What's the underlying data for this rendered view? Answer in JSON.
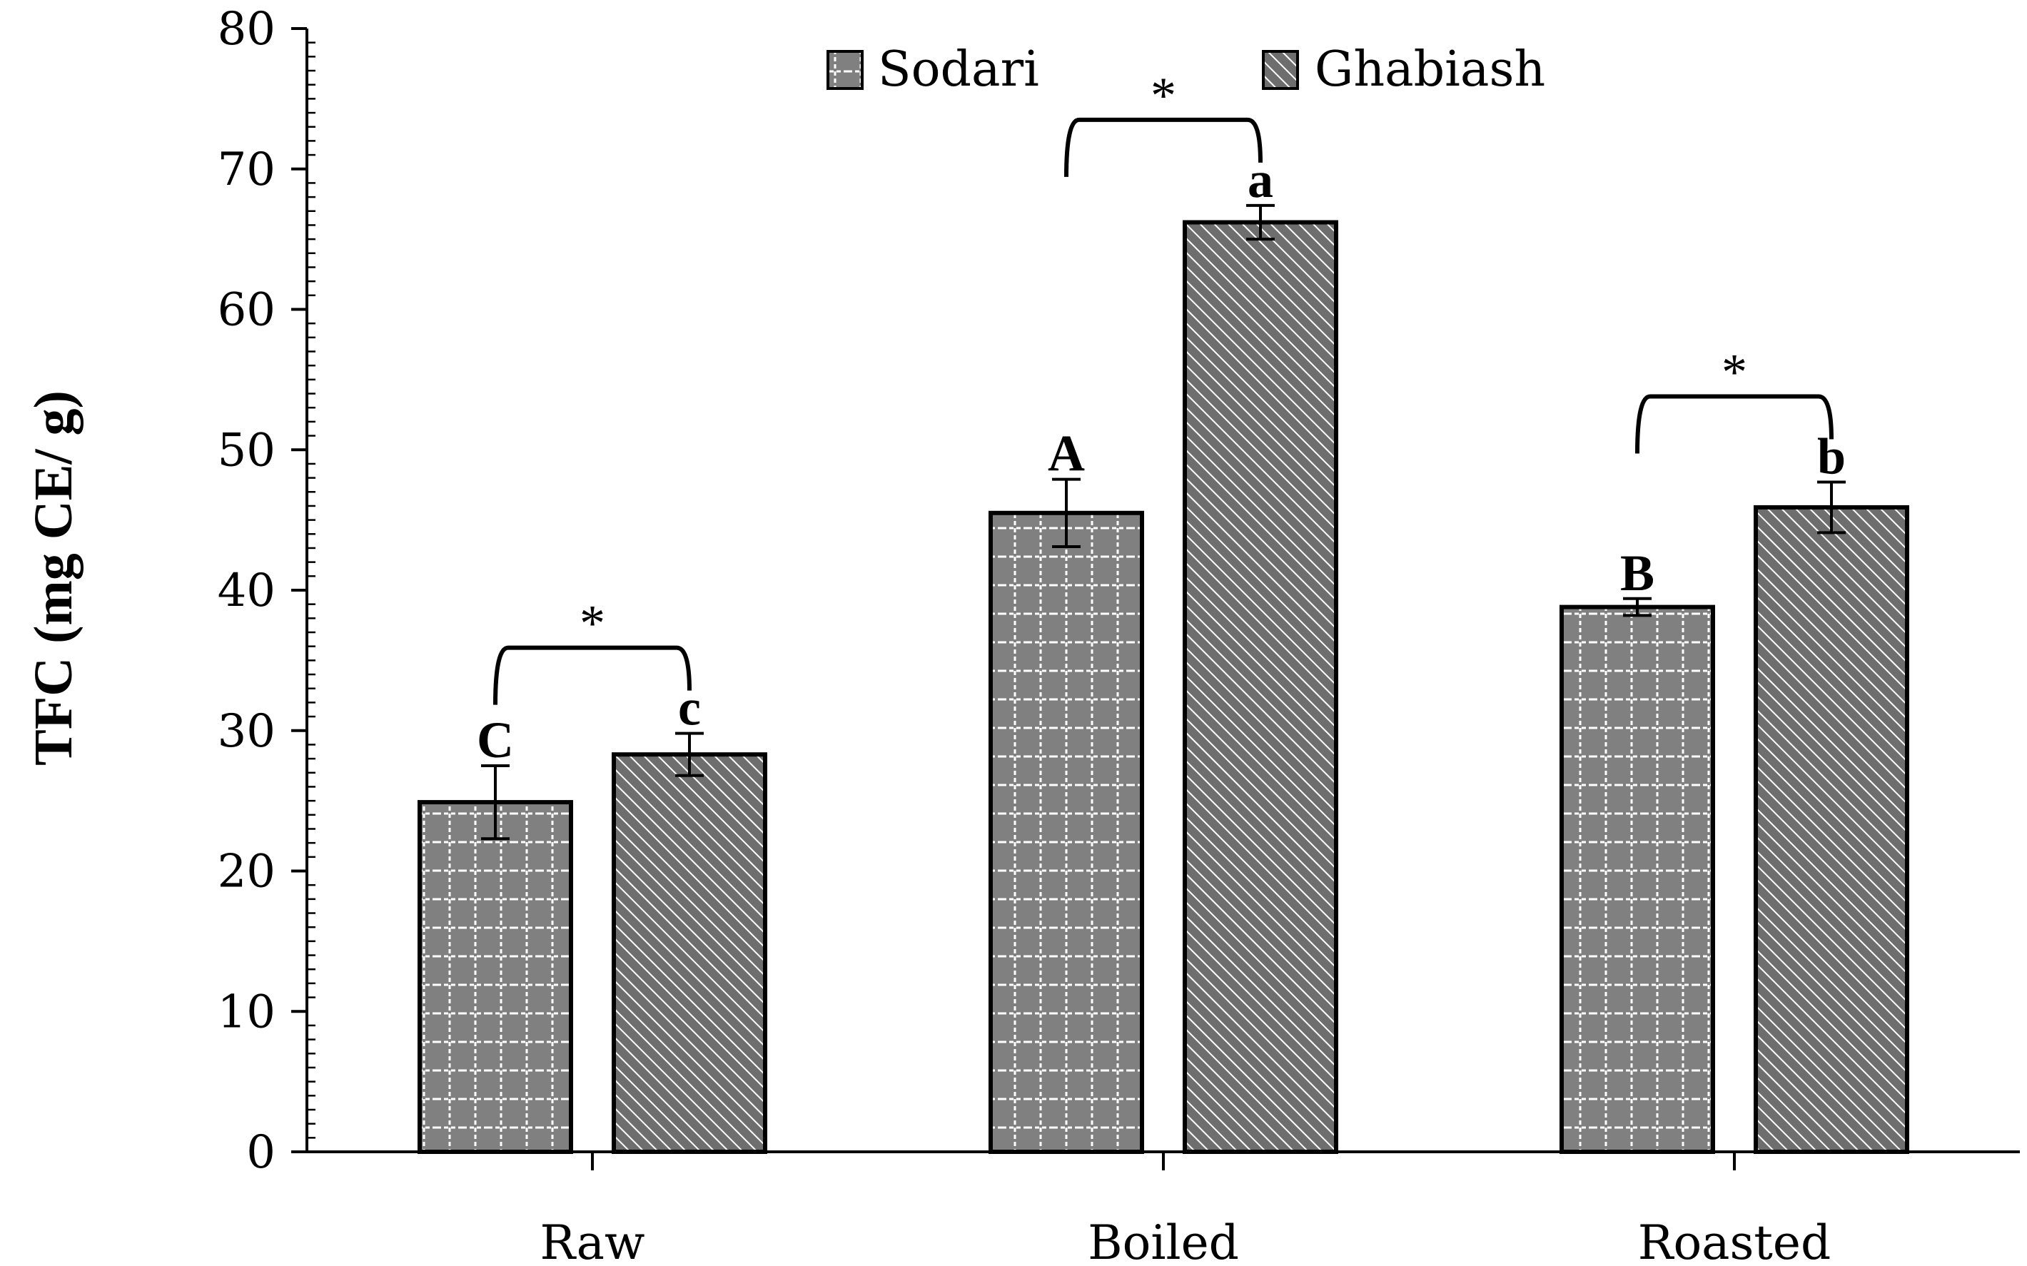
{
  "chart_data": {
    "type": "bar",
    "title": "",
    "xlabel": "",
    "ylabel": "TFC (mg CE/ g)",
    "ylim": [
      0,
      80
    ],
    "yticks": [
      0,
      10,
      20,
      30,
      40,
      50,
      60,
      70,
      80
    ],
    "categories": [
      "Raw",
      "Boiled",
      "Roasted"
    ],
    "legend_position": "top-center",
    "series": [
      {
        "name": "Sodari",
        "pattern": "grid",
        "color": "#808080",
        "values": [
          24.9,
          45.5,
          38.8
        ],
        "errors": [
          2.6,
          2.4,
          0.6
        ],
        "letters": [
          "C",
          "A",
          "B"
        ]
      },
      {
        "name": "Ghabiash",
        "pattern": "diagonal",
        "color": "#6e6e6e",
        "values": [
          28.3,
          66.2,
          45.9
        ],
        "errors": [
          1.5,
          1.2,
          1.8
        ],
        "letters": [
          "c",
          "a",
          "b"
        ]
      }
    ],
    "significance": [
      "*",
      "*",
      "*"
    ]
  }
}
